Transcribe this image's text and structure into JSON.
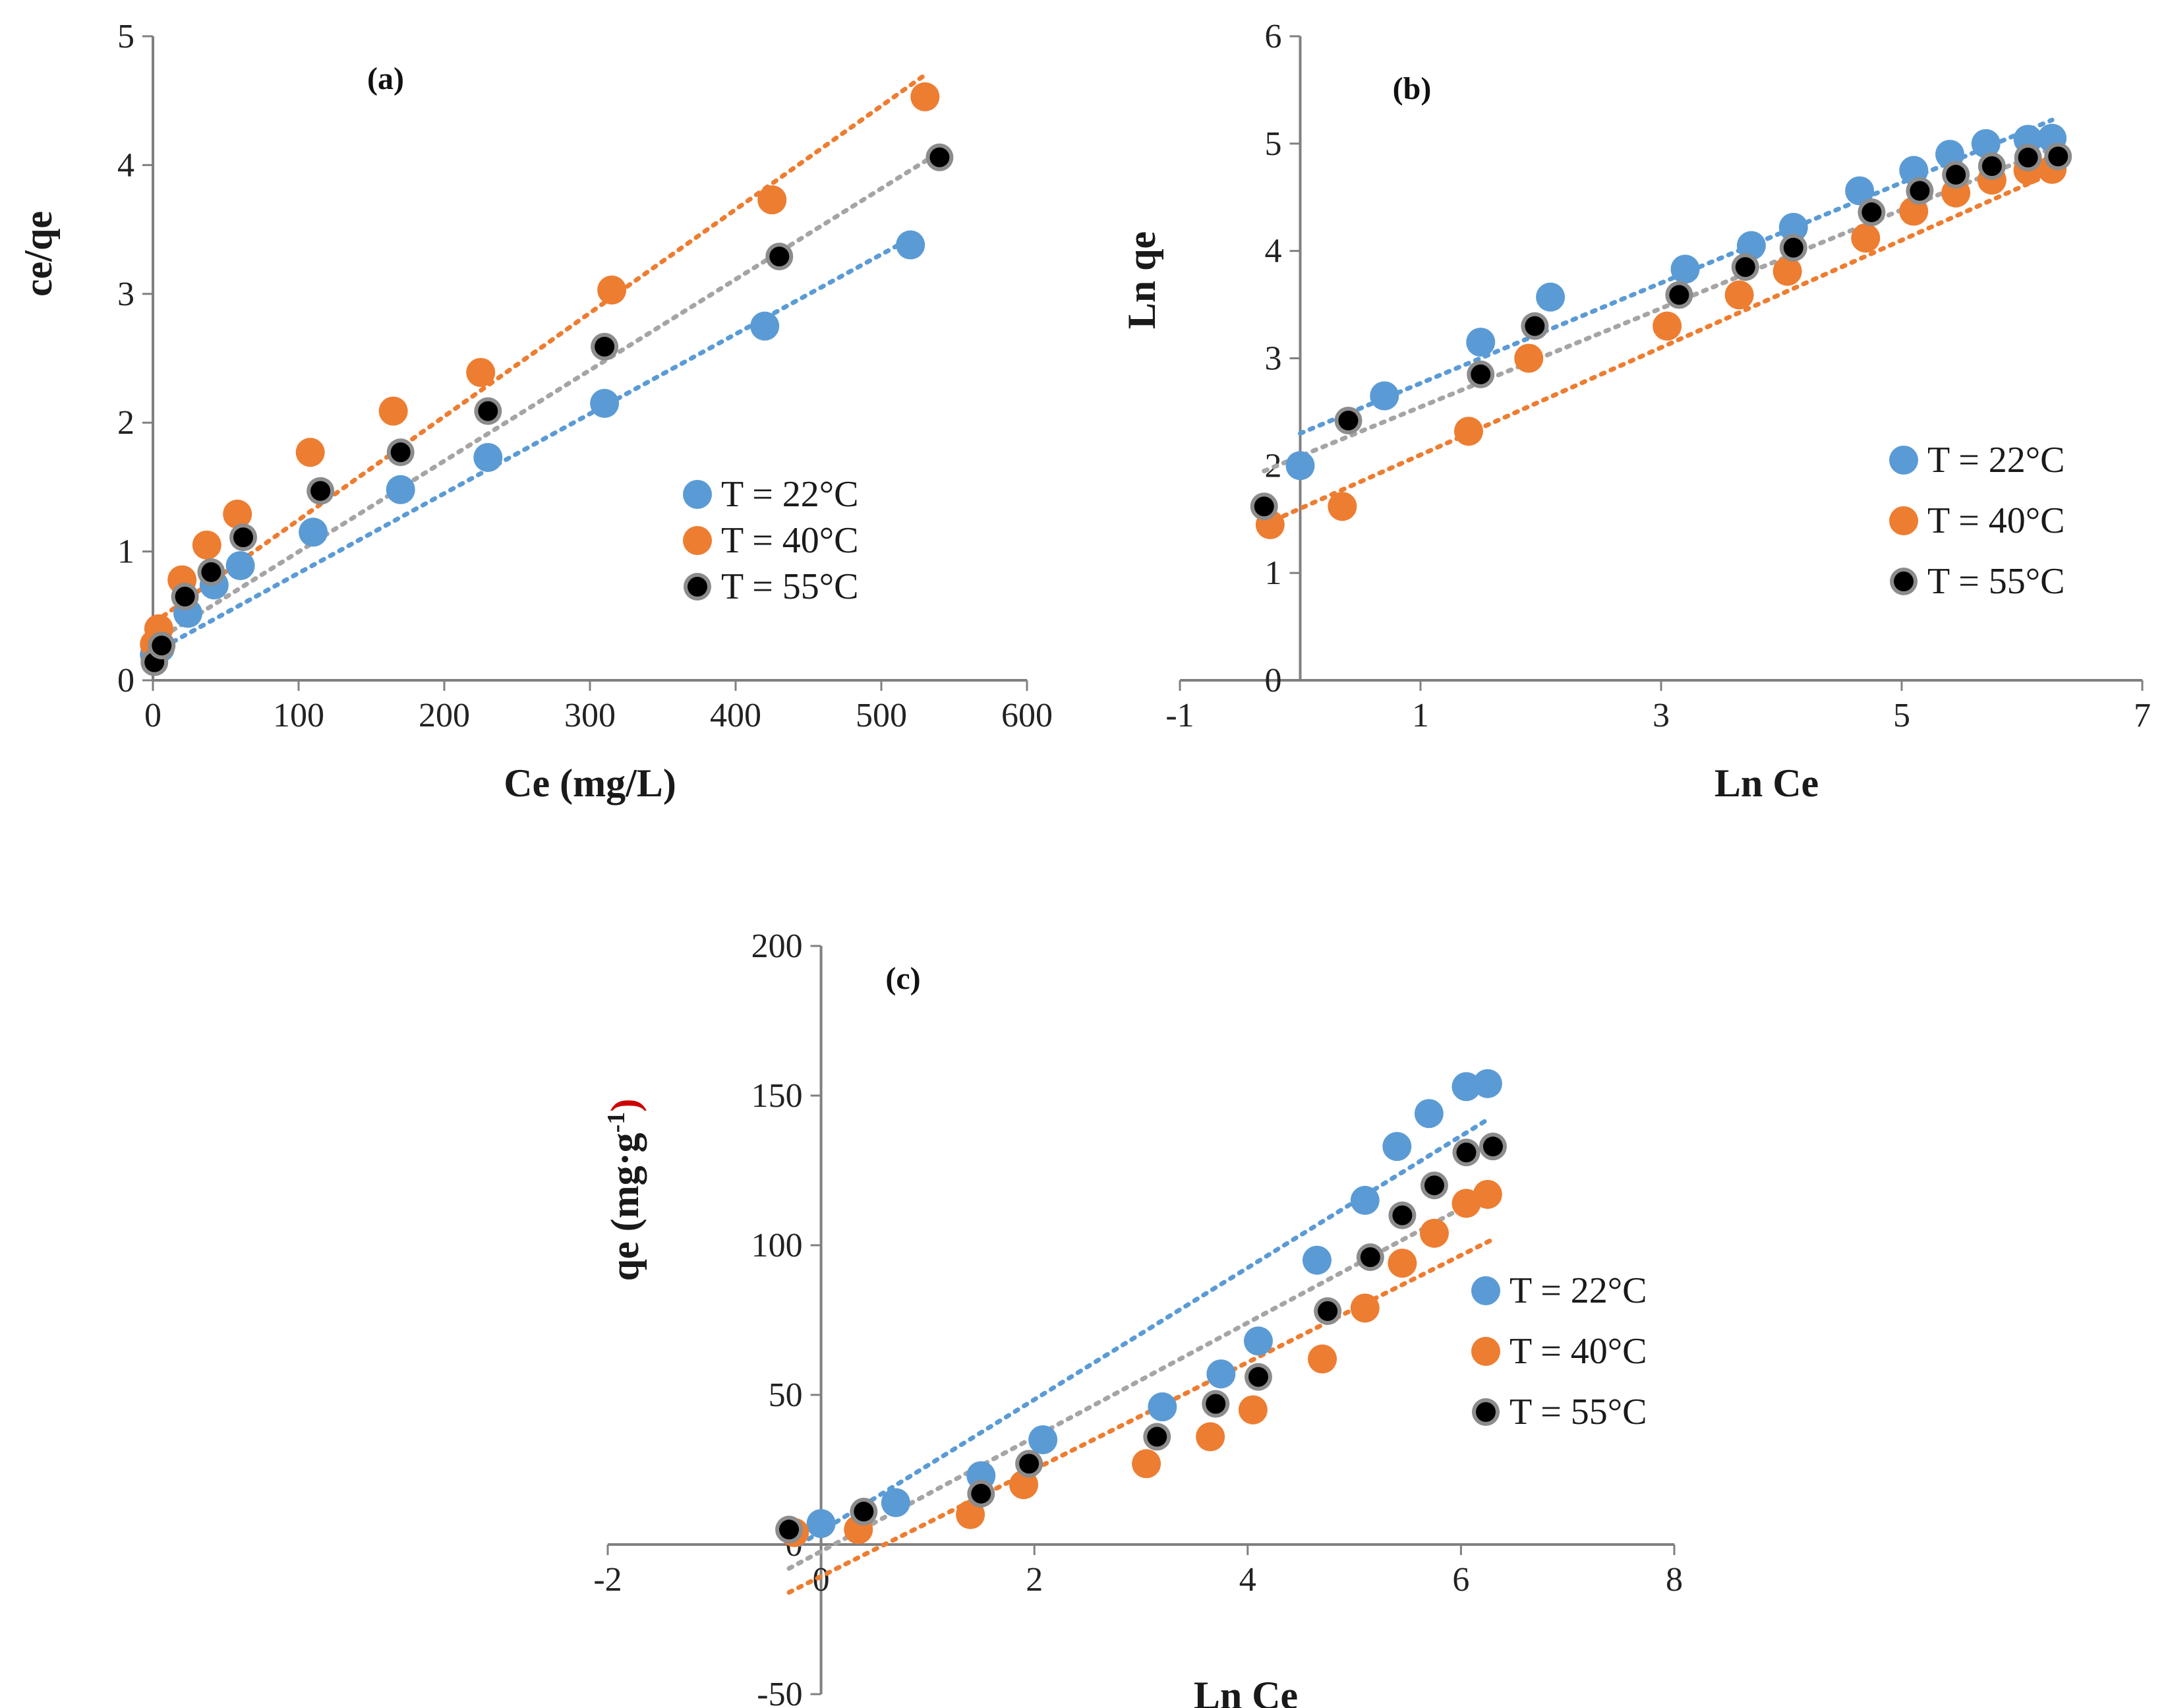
{
  "series_colors": [
    "#5b9bd5",
    "#ed7d31",
    "#000000"
  ],
  "trend_colors": [
    "#5b9bd5",
    "#ed7d31",
    "#a5a5a5"
  ],
  "chart_data": [
    {
      "type": "scatter",
      "panel_label": "(a)",
      "xlabel": "Ce (mg/L)",
      "ylabel": "ce/qe",
      "xlim": [
        0,
        600
      ],
      "ylim": [
        0,
        5
      ],
      "xticks": [
        "0",
        "100",
        "200",
        "300",
        "400",
        "500",
        "600"
      ],
      "yticks": [
        "0",
        "1",
        "2",
        "3",
        "4",
        "5"
      ],
      "legend_position": "middle-right",
      "series": [
        {
          "name": "T = 22°C",
          "x": [
            1,
            5,
            24,
            42,
            60,
            110,
            170,
            230,
            310,
            420,
            520
          ],
          "y": [
            0.2,
            0.25,
            0.52,
            0.74,
            0.89,
            1.15,
            1.48,
            1.73,
            2.15,
            2.75,
            3.38
          ],
          "trend": [
            [
              1,
              0.22
            ],
            [
              520,
              3.43
            ]
          ]
        },
        {
          "name": "T = 40°C",
          "x": [
            1,
            4,
            20,
            37,
            58,
            108,
            165,
            225,
            315,
            425,
            530
          ],
          "y": [
            0.28,
            0.4,
            0.78,
            1.05,
            1.29,
            1.77,
            2.09,
            2.39,
            3.03,
            3.73,
            4.53
          ],
          "trend": [
            [
              1,
              0.45
            ],
            [
              530,
              4.7
            ]
          ]
        },
        {
          "name": "T = 55°C",
          "x": [
            1,
            6,
            22,
            40,
            62,
            115,
            170,
            230,
            310,
            430,
            540
          ],
          "y": [
            0.14,
            0.27,
            0.65,
            0.84,
            1.11,
            1.47,
            1.77,
            2.09,
            2.59,
            3.29,
            4.06
          ],
          "trend": [
            [
              1,
              0.3
            ],
            [
              540,
              4.1
            ]
          ]
        }
      ]
    },
    {
      "type": "scatter",
      "panel_label": "(b)",
      "xlabel": "Ln Ce",
      "ylabel": "Ln qe",
      "xlim": [
        -1,
        7
      ],
      "ylim": [
        0,
        6
      ],
      "xticks": [
        "-1",
        "1",
        "3",
        "5",
        "7"
      ],
      "yticks": [
        "0",
        "1",
        "2",
        "3",
        "4",
        "5",
        "6"
      ],
      "legend_position": "bottom-right",
      "series": [
        {
          "name": "T = 22°C",
          "x": [
            0.0,
            0.7,
            1.5,
            2.08,
            3.2,
            3.75,
            4.1,
            4.65,
            5.1,
            5.4,
            5.7,
            6.05,
            6.25
          ],
          "y": [
            2.0,
            2.65,
            3.15,
            3.57,
            3.83,
            4.05,
            4.22,
            4.56,
            4.75,
            4.9,
            5.0,
            5.04,
            5.05
          ],
          "trend": [
            [
              0.0,
              2.3
            ],
            [
              6.25,
              5.22
            ]
          ]
        },
        {
          "name": "T = 40°C",
          "x": [
            -0.25,
            0.35,
            1.4,
            1.9,
            3.05,
            3.65,
            4.05,
            4.7,
            5.1,
            5.45,
            5.75,
            6.05,
            6.25
          ],
          "y": [
            1.45,
            1.62,
            2.32,
            3.0,
            3.3,
            3.59,
            3.81,
            4.12,
            4.37,
            4.54,
            4.66,
            4.75,
            4.76
          ],
          "trend": [
            [
              -0.3,
              1.45
            ],
            [
              6.3,
              4.75
            ]
          ]
        },
        {
          "name": "T = 55°C",
          "x": [
            -0.3,
            0.4,
            1.5,
            1.95,
            3.15,
            3.7,
            4.1,
            4.75,
            5.15,
            5.45,
            5.75,
            6.05,
            6.3
          ],
          "y": [
            1.62,
            2.42,
            2.85,
            3.3,
            3.59,
            3.85,
            4.03,
            4.36,
            4.56,
            4.71,
            4.79,
            4.87,
            4.88
          ],
          "trend": [
            [
              -0.3,
              1.95
            ],
            [
              6.3,
              4.98
            ]
          ]
        }
      ]
    },
    {
      "type": "scatter",
      "panel_label": "(c)",
      "xlabel": "Ln Ce",
      "ylabel": "qe (mg·g",
      "ylabel_sup": "-1",
      "ylabel_close": ")",
      "xlim": [
        -2,
        8
      ],
      "ylim": [
        -50,
        200
      ],
      "xticks": [
        "-2",
        "0",
        "2",
        "4",
        "6",
        "8"
      ],
      "yticks": [
        "-50",
        "0",
        "50",
        "100",
        "150",
        "200"
      ],
      "legend_position": "middle-right",
      "series": [
        {
          "name": "T = 22°C",
          "x": [
            0.0,
            0.7,
            1.5,
            2.08,
            3.2,
            3.75,
            4.1,
            4.65,
            5.1,
            5.4,
            5.7,
            6.05,
            6.25
          ],
          "y": [
            7,
            14,
            23,
            35,
            46,
            57,
            68,
            95,
            115,
            133,
            144,
            153,
            154
          ],
          "trend": [
            [
              -0.2,
              0
            ],
            [
              6.25,
              142
            ]
          ]
        },
        {
          "name": "T = 40°C",
          "x": [
            -0.25,
            0.35,
            1.4,
            1.9,
            3.05,
            3.65,
            4.05,
            4.7,
            5.1,
            5.45,
            5.75,
            6.05,
            6.25
          ],
          "y": [
            4,
            5,
            10,
            20,
            27,
            36,
            45,
            62,
            79,
            94,
            104,
            114,
            117
          ],
          "trend": [
            [
              -0.3,
              -16
            ],
            [
              6.3,
              102
            ]
          ]
        },
        {
          "name": "T = 55°C",
          "x": [
            -0.3,
            0.4,
            1.5,
            1.95,
            3.15,
            3.7,
            4.1,
            4.75,
            5.15,
            5.45,
            5.75,
            6.05,
            6.3
          ],
          "y": [
            5,
            11,
            17,
            27,
            36,
            47,
            56,
            78,
            96,
            110,
            120,
            131,
            133
          ],
          "trend": [
            [
              -0.3,
              -8
            ],
            [
              6.3,
              118
            ]
          ]
        }
      ]
    }
  ]
}
